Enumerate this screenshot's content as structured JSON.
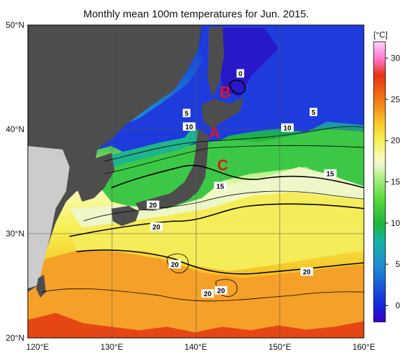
{
  "title": "Monthly mean 100m temperatures for Jun. 2015.",
  "map": {
    "lon_range": [
      120,
      160
    ],
    "lat_range": [
      20,
      50
    ],
    "lon_ticks": [
      "120°E",
      "130°E",
      "140°E",
      "150°E",
      "160°E"
    ],
    "lat_ticks": [
      "20°N",
      "30°N",
      "40°N",
      "50°N"
    ],
    "contour_labels": [
      {
        "text": "0",
        "lon": 145.3,
        "lat": 45.3
      },
      {
        "text": "5",
        "lon": 138.9,
        "lat": 41.5
      },
      {
        "text": "10",
        "lon": 139.2,
        "lat": 40.2
      },
      {
        "text": "5",
        "lon": 154.0,
        "lat": 41.6
      },
      {
        "text": "10",
        "lon": 150.9,
        "lat": 40.1
      },
      {
        "text": "15",
        "lon": 156.0,
        "lat": 35.7
      },
      {
        "text": "15",
        "lon": 142.9,
        "lat": 34.5
      },
      {
        "text": "20",
        "lon": 134.9,
        "lat": 32.7
      },
      {
        "text": "20",
        "lon": 135.3,
        "lat": 30.6
      },
      {
        "text": "20",
        "lon": 137.5,
        "lat": 27.0
      },
      {
        "text": "20",
        "lon": 141.4,
        "lat": 24.2
      },
      {
        "text": "20",
        "lon": 143.0,
        "lat": 24.5
      },
      {
        "text": "20",
        "lon": 153.2,
        "lat": 26.3
      }
    ],
    "region_marks": [
      {
        "text": "A",
        "lon": 142.2,
        "lat": 39.7
      },
      {
        "text": "B",
        "lon": 143.5,
        "lat": 43.6
      },
      {
        "text": "C",
        "lon": 143.2,
        "lat": 36.6
      }
    ]
  },
  "colorbar": {
    "unit": "[°C]",
    "ticks": [
      "0",
      "5",
      "10",
      "15",
      "20",
      "25",
      "30"
    ],
    "range": [
      -2,
      32
    ],
    "colors": {
      "t_neg2": "#3c00c8",
      "t0": "#1428dc",
      "t5": "#1e8cd2",
      "t8": "#14b4a0",
      "t10": "#1eb43c",
      "t13": "#5adc3c",
      "t16": "#b4f08c",
      "t17": "#f0f5d2",
      "t18": "#fafab4",
      "t20": "#f5f050",
      "t22": "#f5c828",
      "t24": "#f5961e",
      "t26": "#f06414",
      "t28": "#e63214",
      "t30": "#ff78d2",
      "t32": "#ffd2f5"
    }
  },
  "legend_colors": {
    "land": "#4d4d4d",
    "land_light": "#cccccc",
    "marks": "#e0141e"
  }
}
